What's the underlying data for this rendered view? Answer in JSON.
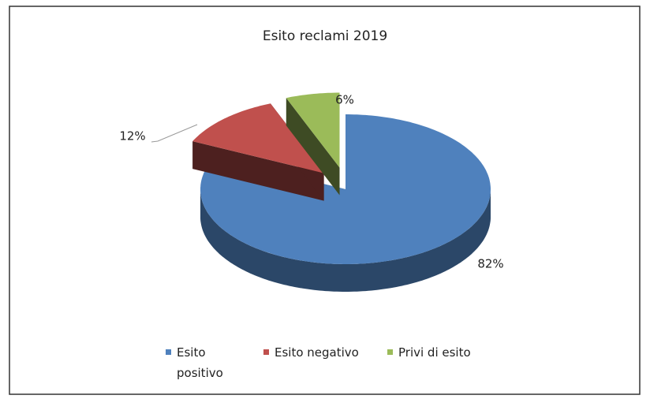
{
  "chart_data": {
    "type": "pie",
    "title": "Esito reclami 2019",
    "categories": [
      "Esito positivo",
      "Esito negativo",
      "Privi di esito"
    ],
    "values": [
      82,
      12,
      6
    ],
    "value_labels": [
      "82%",
      "12%",
      "6%"
    ],
    "colors": [
      "#4f81bd",
      "#c0504d",
      "#9bbb59"
    ],
    "legend": "bottom"
  }
}
